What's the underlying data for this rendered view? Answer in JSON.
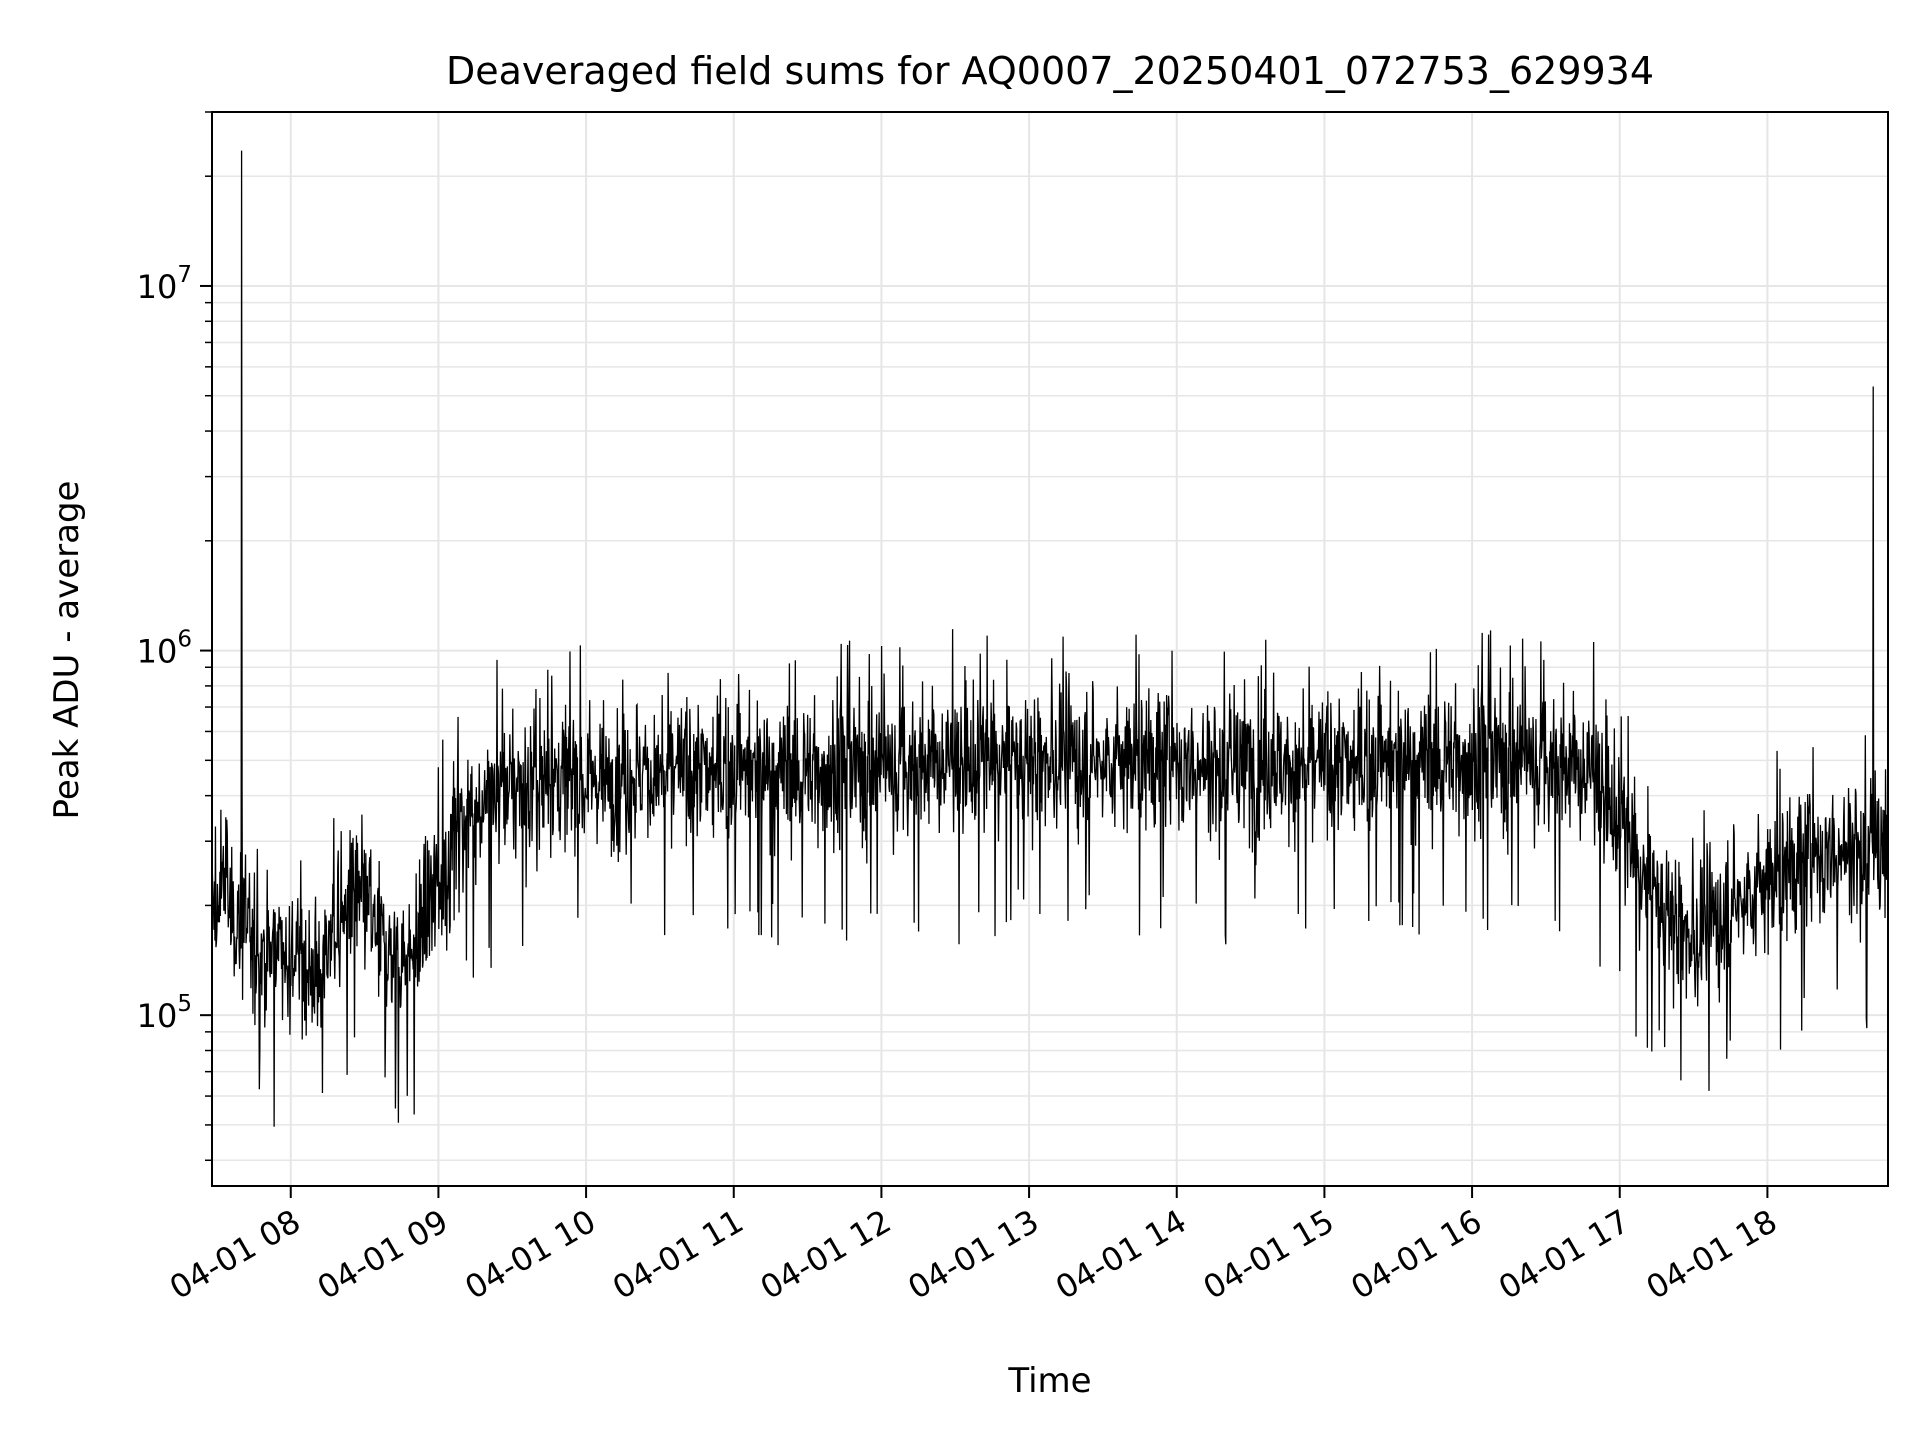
{
  "chart_data": {
    "type": "line",
    "title": "Deaveraged field sums for AQ0007_20250401_072753_629934",
    "xlabel": "Time",
    "ylabel": "Peak ADU - average",
    "yscale": "log",
    "ylim": [
      34000,
      30000000
    ],
    "xlim": [
      "2025-04-01 07:28",
      "2025-04-01 18:49"
    ],
    "grid": true,
    "grid_color": "#e6e6e6",
    "line_color": "#000000",
    "x_ticks": [
      {
        "value": "2025-04-01 08:00",
        "label": "04-01 08"
      },
      {
        "value": "2025-04-01 09:00",
        "label": "04-01 09"
      },
      {
        "value": "2025-04-01 10:00",
        "label": "04-01 10"
      },
      {
        "value": "2025-04-01 11:00",
        "label": "04-01 11"
      },
      {
        "value": "2025-04-01 12:00",
        "label": "04-01 12"
      },
      {
        "value": "2025-04-01 13:00",
        "label": "04-01 13"
      },
      {
        "value": "2025-04-01 14:00",
        "label": "04-01 14"
      },
      {
        "value": "2025-04-01 15:00",
        "label": "04-01 15"
      },
      {
        "value": "2025-04-01 16:00",
        "label": "04-01 16"
      },
      {
        "value": "2025-04-01 17:00",
        "label": "04-01 17"
      },
      {
        "value": "2025-04-01 18:00",
        "label": "04-01 18"
      }
    ],
    "y_ticks": [
      {
        "value": 100000,
        "base": "10",
        "exp": "5"
      },
      {
        "value": 1000000,
        "base": "10",
        "exp": "6"
      },
      {
        "value": 10000000,
        "base": "10",
        "exp": "7"
      }
    ],
    "series": [
      {
        "values": [
          [
            "2025-04-01 07:28",
            200000
          ],
          [
            "2025-04-01 07:30",
            160000
          ],
          [
            "2025-04-01 07:32",
            260000
          ],
          [
            "2025-04-01 07:34",
            240000
          ],
          [
            "2025-04-01 07:36",
            170000
          ],
          [
            "2025-04-01 07:38",
            190000
          ],
          [
            "2025-04-01 07:40",
            23500000
          ],
          [
            "2025-04-01 07:42",
            180000
          ],
          [
            "2025-04-01 07:45",
            150000
          ],
          [
            "2025-04-01 07:50",
            140000
          ],
          [
            "2025-04-01 07:55",
            160000
          ],
          [
            "2025-04-01 08:00",
            150000
          ],
          [
            "2025-04-01 08:05",
            140000
          ],
          [
            "2025-04-01 08:10",
            130000
          ],
          [
            "2025-04-01 08:15",
            150000
          ],
          [
            "2025-04-01 08:20",
            180000
          ],
          [
            "2025-04-01 08:25",
            220000
          ],
          [
            "2025-04-01 08:30",
            200000
          ],
          [
            "2025-04-01 08:35",
            170000
          ],
          [
            "2025-04-01 08:40",
            150000
          ],
          [
            "2025-04-01 08:45",
            140000
          ],
          [
            "2025-04-01 08:50",
            150000
          ],
          [
            "2025-04-01 08:55",
            180000
          ],
          [
            "2025-04-01 09:00",
            230000
          ],
          [
            "2025-04-01 09:05",
            280000
          ],
          [
            "2025-04-01 09:10",
            330000
          ],
          [
            "2025-04-01 09:15",
            370000
          ],
          [
            "2025-04-01 09:20",
            400000
          ],
          [
            "2025-04-01 09:30",
            420000
          ],
          [
            "2025-04-01 09:45",
            440000
          ],
          [
            "2025-04-01 10:00",
            450000
          ],
          [
            "2025-04-01 10:30",
            460000
          ],
          [
            "2025-04-01 11:00",
            470000
          ],
          [
            "2025-04-01 11:30",
            470000
          ],
          [
            "2025-04-01 12:00",
            480000
          ],
          [
            "2025-04-01 12:30",
            490000
          ],
          [
            "2025-04-01 13:00",
            500000
          ],
          [
            "2025-04-01 13:30",
            500000
          ],
          [
            "2025-04-01 14:00",
            490000
          ],
          [
            "2025-04-01 14:30",
            480000
          ],
          [
            "2025-04-01 15:00",
            480000
          ],
          [
            "2025-04-01 15:30",
            500000
          ],
          [
            "2025-04-01 16:00",
            510000
          ],
          [
            "2025-04-01 16:30",
            500000
          ],
          [
            "2025-04-01 16:50",
            450000
          ],
          [
            "2025-04-01 17:00",
            340000
          ],
          [
            "2025-04-01 17:10",
            230000
          ],
          [
            "2025-04-01 17:20",
            190000
          ],
          [
            "2025-04-01 17:30",
            160000
          ],
          [
            "2025-04-01 17:36",
            170000
          ],
          [
            "2025-04-01 17:45",
            200000
          ],
          [
            "2025-04-01 17:55",
            220000
          ],
          [
            "2025-04-01 18:05",
            240000
          ],
          [
            "2025-04-01 18:15",
            260000
          ],
          [
            "2025-04-01 18:25",
            280000
          ],
          [
            "2025-04-01 18:35",
            290000
          ],
          [
            "2025-04-01 18:43",
            5300000
          ],
          [
            "2025-04-01 18:45",
            280000
          ],
          [
            "2025-04-01 18:49",
            270000
          ]
        ]
      }
    ]
  }
}
